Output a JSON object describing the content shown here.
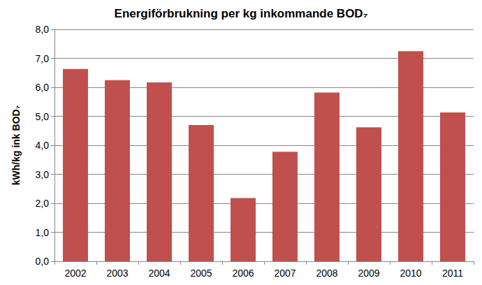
{
  "chart_data": {
    "type": "bar",
    "title": "Energiförbrukning per kg inkommande BOD₇",
    "y_label": "kWh/kg ink BOD₇",
    "categories": [
      "2002",
      "2003",
      "2004",
      "2005",
      "2006",
      "2007",
      "2008",
      "2009",
      "2010",
      "2011"
    ],
    "values": [
      6.63,
      6.25,
      6.17,
      4.7,
      2.18,
      3.78,
      5.82,
      4.62,
      7.25,
      5.13
    ],
    "color": "#c0504d",
    "ylim": [
      0,
      8
    ],
    "yticks": [
      {
        "value": 0,
        "label": "0,0"
      },
      {
        "value": 1,
        "label": "1,0"
      },
      {
        "value": 2,
        "label": "2,0"
      },
      {
        "value": 3,
        "label": "3,0"
      },
      {
        "value": 4,
        "label": "4,0"
      },
      {
        "value": 5,
        "label": "5,0"
      },
      {
        "value": 6,
        "label": "6,0"
      },
      {
        "value": 7,
        "label": "7,0"
      },
      {
        "value": 8,
        "label": "8,0"
      }
    ],
    "grid": true
  }
}
